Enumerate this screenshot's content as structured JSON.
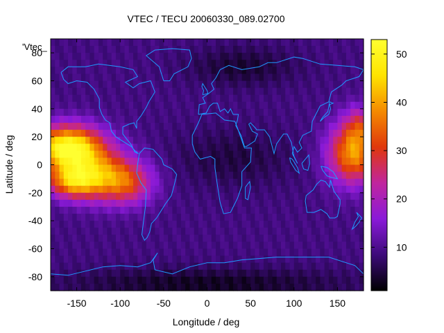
{
  "chart_data": {
    "type": "heatmap",
    "title": "VTEC / TECU 20060330_089.02700",
    "xlabel": "Longitude / deg",
    "ylabel": "Latitude / deg",
    "key_label": "'Vtec_",
    "xlim": [
      -180,
      180
    ],
    "ylim": [
      -90,
      90
    ],
    "x_ticks": [
      "-150",
      "-100",
      "-50",
      "0",
      "50",
      "100",
      "150"
    ],
    "x_tick_values": [
      -150,
      -100,
      -50,
      0,
      50,
      100,
      150
    ],
    "y_ticks": [
      "-80",
      "-60",
      "-40",
      "-20",
      "0",
      "20",
      "40",
      "60",
      "80"
    ],
    "y_tick_values": [
      -80,
      -60,
      -40,
      -20,
      0,
      20,
      40,
      60,
      80
    ],
    "colorbar": {
      "range": [
        1,
        53
      ],
      "ticks": [
        "10",
        "20",
        "30",
        "40",
        "50"
      ],
      "tick_values": [
        10,
        20,
        30,
        40,
        50
      ],
      "palette": [
        "#000000",
        "#3d0b7a",
        "#8a1ad8",
        "#c0259e",
        "#e0380c",
        "#f48a00",
        "#ffe400",
        "#ffff30"
      ]
    },
    "grid_step_deg": 5,
    "coastline_color": "#1e9bff",
    "features": {
      "background_tec": 9,
      "anomalies": [
        {
          "lon": -160,
          "lat": 12,
          "peak": 44,
          "sigma_lon": 28,
          "sigma_lat": 11
        },
        {
          "lon": -120,
          "lat": -8,
          "peak": 26,
          "sigma_lon": 30,
          "sigma_lat": 12
        },
        {
          "lon": -155,
          "lat": -12,
          "peak": 24,
          "sigma_lon": 20,
          "sigma_lat": 8
        },
        {
          "lon": -90,
          "lat": -15,
          "peak": 12,
          "sigma_lon": 20,
          "sigma_lat": 10
        },
        {
          "lon": 168,
          "lat": 8,
          "peak": 30,
          "sigma_lon": 20,
          "sigma_lat": 15
        },
        {
          "lon": 175,
          "lat": 28,
          "peak": 12,
          "sigma_lon": 12,
          "sigma_lat": 10
        },
        {
          "lon": 40,
          "lat": 70,
          "peak": -5,
          "sigma_lon": 45,
          "sigma_lat": 10
        },
        {
          "lon": 30,
          "lat": 5,
          "peak": -4,
          "sigma_lon": 50,
          "sigma_lat": 15
        },
        {
          "lon": 0,
          "lat": -85,
          "peak": -6,
          "sigma_lon": 120,
          "sigma_lat": 8
        }
      ]
    }
  }
}
